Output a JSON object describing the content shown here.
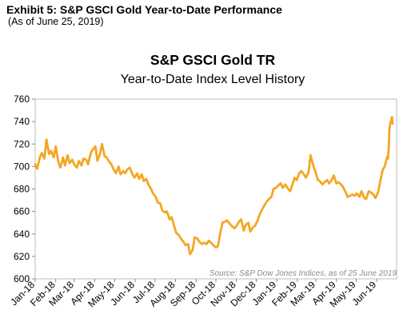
{
  "header": {
    "exhibit_title": "Exhibit 5: S&P GSCI Gold Year-to-Date Performance",
    "exhibit_subtitle": "(As of June 25, 2019)"
  },
  "chart_data": {
    "type": "line",
    "title": "S&P GSCI Gold TR",
    "subtitle": "Year-to-Date Index Level History",
    "source_note": "Source: S&P Dow Jones Indices, as of 25 June 2019",
    "ylim": [
      600,
      760
    ],
    "yticks": [
      600,
      620,
      640,
      660,
      680,
      700,
      720,
      740,
      760
    ],
    "xlim": [
      "2018-01-01",
      "2019-07-01"
    ],
    "xticks": [
      "Jan-18",
      "Feb-18",
      "Mar-18",
      "Apr-18",
      "May-18",
      "Jun-18",
      "Jul-18",
      "Aug-18",
      "Sep-18",
      "Oct-18",
      "Nov-18",
      "Dec-18",
      "Jan-19",
      "Feb-19",
      "Mar-19",
      "Apr-19",
      "May-19",
      "Jun-19"
    ],
    "grid": false,
    "line_color": "#f5a623",
    "series": [
      {
        "x": [
          "2018-01-01",
          "2018-01-04",
          "2018-01-08",
          "2018-01-11",
          "2018-01-15",
          "2018-01-18",
          "2018-01-22",
          "2018-01-25",
          "2018-01-29",
          "2018-02-01",
          "2018-02-05",
          "2018-02-08",
          "2018-02-12",
          "2018-02-15",
          "2018-02-19",
          "2018-02-22",
          "2018-02-26",
          "2018-03-01",
          "2018-03-05",
          "2018-03-08",
          "2018-03-12",
          "2018-03-15",
          "2018-03-19",
          "2018-03-22",
          "2018-03-26",
          "2018-03-29",
          "2018-04-02",
          "2018-04-05",
          "2018-04-09",
          "2018-04-12",
          "2018-04-16",
          "2018-04-19",
          "2018-04-23",
          "2018-04-26",
          "2018-04-30",
          "2018-05-03",
          "2018-05-07",
          "2018-05-10",
          "2018-05-14",
          "2018-05-17",
          "2018-05-21",
          "2018-05-24",
          "2018-05-28",
          "2018-05-31",
          "2018-06-04",
          "2018-06-07",
          "2018-06-11",
          "2018-06-14",
          "2018-06-18",
          "2018-06-21",
          "2018-06-25",
          "2018-06-28",
          "2018-07-02",
          "2018-07-05",
          "2018-07-09",
          "2018-07-12",
          "2018-07-16",
          "2018-07-19",
          "2018-07-23",
          "2018-07-26",
          "2018-07-30",
          "2018-08-02",
          "2018-08-06",
          "2018-08-09",
          "2018-08-13",
          "2018-08-16",
          "2018-08-20",
          "2018-08-23",
          "2018-08-27",
          "2018-08-30",
          "2018-09-03",
          "2018-09-06",
          "2018-09-10",
          "2018-09-13",
          "2018-09-17",
          "2018-09-20",
          "2018-09-24",
          "2018-09-27",
          "2018-10-01",
          "2018-10-04",
          "2018-10-08",
          "2018-10-11",
          "2018-10-15",
          "2018-10-18",
          "2018-10-22",
          "2018-10-25",
          "2018-10-29",
          "2018-11-01",
          "2018-11-05",
          "2018-11-08",
          "2018-11-12",
          "2018-11-15",
          "2018-11-19",
          "2018-11-22",
          "2018-11-26",
          "2018-11-29",
          "2018-12-03",
          "2018-12-06",
          "2018-12-10",
          "2018-12-13",
          "2018-12-17",
          "2018-12-20",
          "2018-12-24",
          "2018-12-27",
          "2018-12-31",
          "2019-01-03",
          "2019-01-07",
          "2019-01-10",
          "2019-01-14",
          "2019-01-17",
          "2019-01-21",
          "2019-01-24",
          "2019-01-28",
          "2019-01-31",
          "2019-02-04",
          "2019-02-07",
          "2019-02-11",
          "2019-02-14",
          "2019-02-18",
          "2019-02-21",
          "2019-02-25",
          "2019-02-28",
          "2019-03-04",
          "2019-03-07",
          "2019-03-11",
          "2019-03-14",
          "2019-03-18",
          "2019-03-21",
          "2019-03-25",
          "2019-03-28",
          "2019-04-01",
          "2019-04-04",
          "2019-04-08",
          "2019-04-11",
          "2019-04-15",
          "2019-04-18",
          "2019-04-22",
          "2019-04-25",
          "2019-04-29",
          "2019-05-02",
          "2019-05-06",
          "2019-05-09",
          "2019-05-13",
          "2019-05-16",
          "2019-05-20",
          "2019-05-23",
          "2019-05-27",
          "2019-05-30",
          "2019-06-03",
          "2019-06-06",
          "2019-06-10",
          "2019-06-13",
          "2019-06-17",
          "2019-06-18",
          "2019-06-19",
          "2019-06-20",
          "2019-06-21",
          "2019-06-24",
          "2019-06-25"
        ],
        "values": [
          702,
          698,
          708,
          712,
          707,
          724,
          711,
          714,
          708,
          718,
          704,
          699,
          708,
          701,
          710,
          703,
          706,
          702,
          699,
          705,
          701,
          707,
          706,
          702,
          712,
          715,
          718,
          705,
          711,
          720,
          709,
          708,
          704,
          702,
          697,
          694,
          700,
          693,
          696,
          694,
          698,
          699,
          693,
          690,
          694,
          689,
          693,
          687,
          689,
          684,
          680,
          676,
          673,
          668,
          667,
          661,
          659,
          660,
          653,
          655,
          647,
          641,
          639,
          636,
          633,
          630,
          631,
          622,
          626,
          637,
          636,
          633,
          631,
          632,
          631,
          634,
          632,
          630,
          628,
          629,
          642,
          650,
          651,
          652,
          649,
          647,
          645,
          647,
          651,
          653,
          643,
          648,
          650,
          642,
          646,
          647,
          652,
          657,
          662,
          665,
          669,
          671,
          673,
          680,
          681,
          683,
          685,
          681,
          684,
          681,
          678,
          683,
          690,
          688,
          694,
          696,
          693,
          690,
          695,
          710,
          701,
          696,
          688,
          687,
          684,
          686,
          688,
          685,
          688,
          692,
          685,
          686,
          684,
          682,
          677,
          673,
          674,
          675,
          674,
          676,
          673,
          678,
          672,
          671,
          678,
          677,
          675,
          672,
          677,
          686,
          697,
          700,
          709,
          707,
          715,
          732,
          737,
          744,
          738
        ]
      }
    ]
  }
}
